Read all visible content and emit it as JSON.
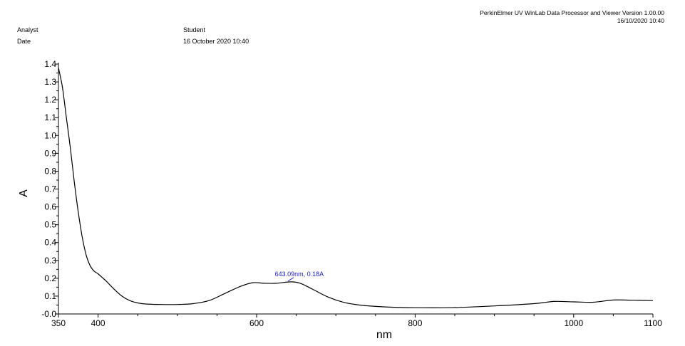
{
  "header": {
    "app_title": "PerkinElmer UV WinLab Data Processor and Viewer Version 1.00.00",
    "timestamp": "16/10/2020 10:40",
    "analyst_label": "Analyst",
    "analyst_value": "Student",
    "date_label": "Date",
    "date_value": "16 October 2020 10:40"
  },
  "chart_data": {
    "type": "line",
    "xlabel": "nm",
    "ylabel": "A",
    "xlim": [
      350,
      1100
    ],
    "ylim": [
      0.0,
      1.4
    ],
    "x_ticks": [
      350,
      400,
      600,
      800,
      1000,
      1100
    ],
    "y_ticks": [
      0.0,
      0.1,
      0.2,
      0.3,
      0.4,
      0.5,
      0.6,
      0.7,
      0.8,
      0.9,
      1.0,
      1.1,
      1.2,
      1.3,
      1.4
    ],
    "y_tick_labels": [
      "-0.0",
      "0.1",
      "0.2",
      "0.3",
      "0.4",
      "0.5",
      "0.6",
      "0.7",
      "0.8",
      "0.9",
      "1.0",
      "1.1",
      "1.2",
      "1.3",
      "1.4"
    ],
    "grid": false,
    "line_color": "#000000",
    "annotation_color": "#1a1ac8",
    "series": [
      {
        "x": [
          350,
          355,
          360,
          365,
          370,
          375,
          380,
          385,
          390,
          395,
          400,
          405,
          410,
          420,
          430,
          440,
          450,
          460,
          480,
          500,
          520,
          540,
          560,
          580,
          595,
          610,
          625,
          643,
          655,
          670,
          690,
          710,
          730,
          760,
          800,
          850,
          900,
          950,
          975,
          1000,
          1025,
          1050,
          1075,
          1100
        ],
        "y": [
          1.38,
          1.27,
          1.1,
          0.93,
          0.74,
          0.57,
          0.43,
          0.33,
          0.27,
          0.24,
          0.225,
          0.205,
          0.185,
          0.14,
          0.1,
          0.075,
          0.062,
          0.056,
          0.053,
          0.053,
          0.058,
          0.075,
          0.115,
          0.155,
          0.175,
          0.172,
          0.172,
          0.18,
          0.172,
          0.14,
          0.095,
          0.065,
          0.05,
          0.04,
          0.035,
          0.036,
          0.045,
          0.058,
          0.07,
          0.068,
          0.066,
          0.078,
          0.077,
          0.075
        ]
      }
    ],
    "annotations": [
      {
        "x": 643.09,
        "y": 0.18,
        "text": "643.09nm, 0.18A"
      }
    ]
  }
}
